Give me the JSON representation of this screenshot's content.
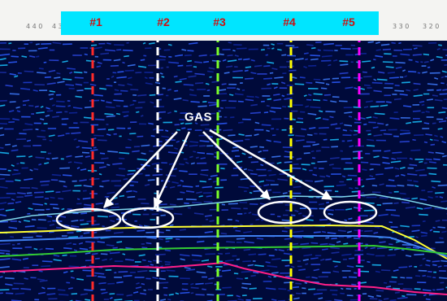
{
  "ruler": {
    "labels": [
      "4 4 0",
      "4 3",
      "3 3 0",
      "3 2 0"
    ]
  },
  "wells": [
    {
      "label": "#1",
      "color": "#ff2a2a"
    },
    {
      "label": "#2",
      "color": "#ffffff"
    },
    {
      "label": "#3",
      "color": "#7cff2a"
    },
    {
      "label": "#4",
      "color": "#ffff00"
    },
    {
      "label": "#5",
      "color": "#ff00ff"
    }
  ],
  "annotation": {
    "label": "GAS",
    "anomaly_count": 4
  },
  "colors": {
    "banner": "#00e5ff",
    "well_label": "#cc1111",
    "background": "#000a3a",
    "horizons": [
      "#7fd8ee",
      "#ffff33",
      "#3f7ff0",
      "#33cc33",
      "#ff1f88"
    ]
  }
}
